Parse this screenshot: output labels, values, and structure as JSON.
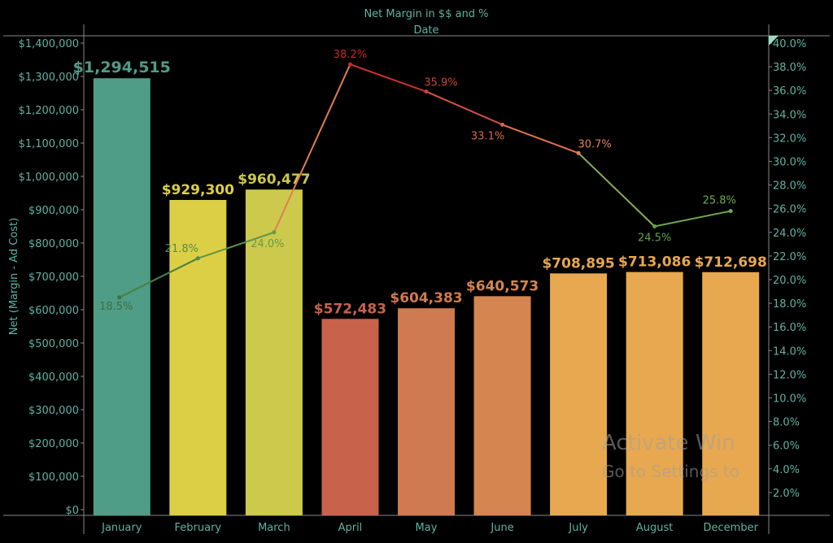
{
  "chart_data": {
    "type": "bar+line",
    "title": "Net Margin in $$ and %",
    "subtitle": "Date",
    "ylabel": "Net (Margin - Ad Cost)",
    "y2label": "",
    "categories": [
      "January",
      "February",
      "March",
      "April",
      "May",
      "June",
      "July",
      "August",
      "December"
    ],
    "series": [
      {
        "type": "bar",
        "values": [
          1294515,
          929300,
          960477,
          572483,
          604383,
          640573,
          708895,
          713086,
          712698
        ],
        "labels": [
          "$1,294,515",
          "$929,300",
          "$960,477",
          "$572,483",
          "$604,383",
          "$640,573",
          "$708,895",
          "$713,086",
          "$712,698"
        ],
        "colors": [
          "#4f9c87",
          "#dccf45",
          "#cdc94c",
          "#c8624b",
          "#cf7a50",
          "#d5854f",
          "#e8a84f",
          "#e8a84f",
          "#e8a84f"
        ]
      },
      {
        "type": "line",
        "axis": "right",
        "values": [
          18.5,
          21.8,
          24.0,
          38.2,
          35.9,
          33.1,
          30.7,
          24.5,
          25.8
        ],
        "labels": [
          "18.5%",
          "21.8%",
          "24.0%",
          "38.2%",
          "35.9%",
          "33.1%",
          "30.7%",
          "24.5%",
          "25.8%"
        ]
      }
    ],
    "ylim": [
      0,
      1400000
    ],
    "yticks": [
      "$0",
      "$100,000",
      "$200,000",
      "$300,000",
      "$400,000",
      "$500,000",
      "$600,000",
      "$700,000",
      "$800,000",
      "$900,000",
      "$1,000,000",
      "$1,100,000",
      "$1,200,000",
      "$1,300,000",
      "$1,400,000"
    ],
    "y2lim": [
      0,
      40
    ],
    "y2ticks": [
      "2.0%",
      "4.0%",
      "6.0%",
      "8.0%",
      "10.0%",
      "12.0%",
      "14.0%",
      "16.0%",
      "18.0%",
      "20.0%",
      "22.0%",
      "24.0%",
      "26.0%",
      "28.0%",
      "30.0%",
      "32.0%",
      "34.0%",
      "36.0%",
      "38.0%",
      "40.0%"
    ],
    "grid": false,
    "legend": "none"
  },
  "watermark": {
    "line1": "Activate Win",
    "line2": "Go to Settings to"
  }
}
